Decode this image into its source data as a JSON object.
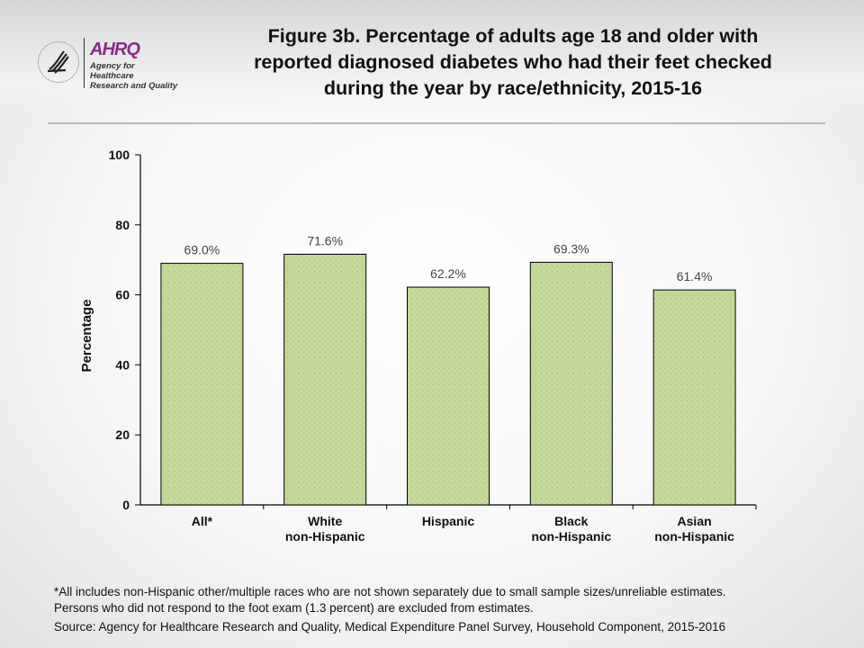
{
  "header": {
    "title": "Figure 3b. Percentage of adults age 18 and older with reported diagnosed diabetes who had their feet checked during the year by race/ethnicity, 2015-16",
    "title_lines": [
      "Figure 3b. Percentage of adults age 18 and older with",
      "reported diagnosed diabetes who had their feet checked",
      "during the year by race/ethnicity, 2015-16"
    ],
    "logo_text": "AHRQ",
    "logo_subtext": [
      "Agency for Healthcare",
      "Research and Quality"
    ]
  },
  "chart_data": {
    "type": "bar",
    "title": "Figure 3b. Percentage of adults age 18 and older with reported diagnosed diabetes who had their feet checked during the year by race/ethnicity, 2015-16",
    "categories": [
      [
        "All*"
      ],
      [
        "White",
        "non-Hispanic"
      ],
      [
        "Hispanic"
      ],
      [
        "Black",
        "non-Hispanic"
      ],
      [
        "Asian",
        "non-Hispanic"
      ]
    ],
    "values": [
      69.0,
      71.6,
      62.2,
      69.3,
      61.4
    ],
    "data_labels": [
      "69.0%",
      "71.6%",
      "62.2%",
      "69.3%",
      "61.4%"
    ],
    "ylabel": "Percentage",
    "xlabel": "",
    "ylim": [
      0,
      100
    ],
    "yticks": [
      0,
      20,
      40,
      60,
      80,
      100
    ],
    "grid": false,
    "bar_color": "#c4d89a",
    "bar_edge": "#000000"
  },
  "footnotes": {
    "note_lines": [
      "*All includes non-Hispanic other/multiple races who are not shown separately due to small sample sizes/unreliable estimates.",
      "Persons who did not respond to the foot exam (1.3 percent) are excluded from estimates."
    ],
    "source": "Source: Agency for Healthcare Research and Quality, Medical Expenditure Panel Survey, Household Component, 2015-2016"
  }
}
